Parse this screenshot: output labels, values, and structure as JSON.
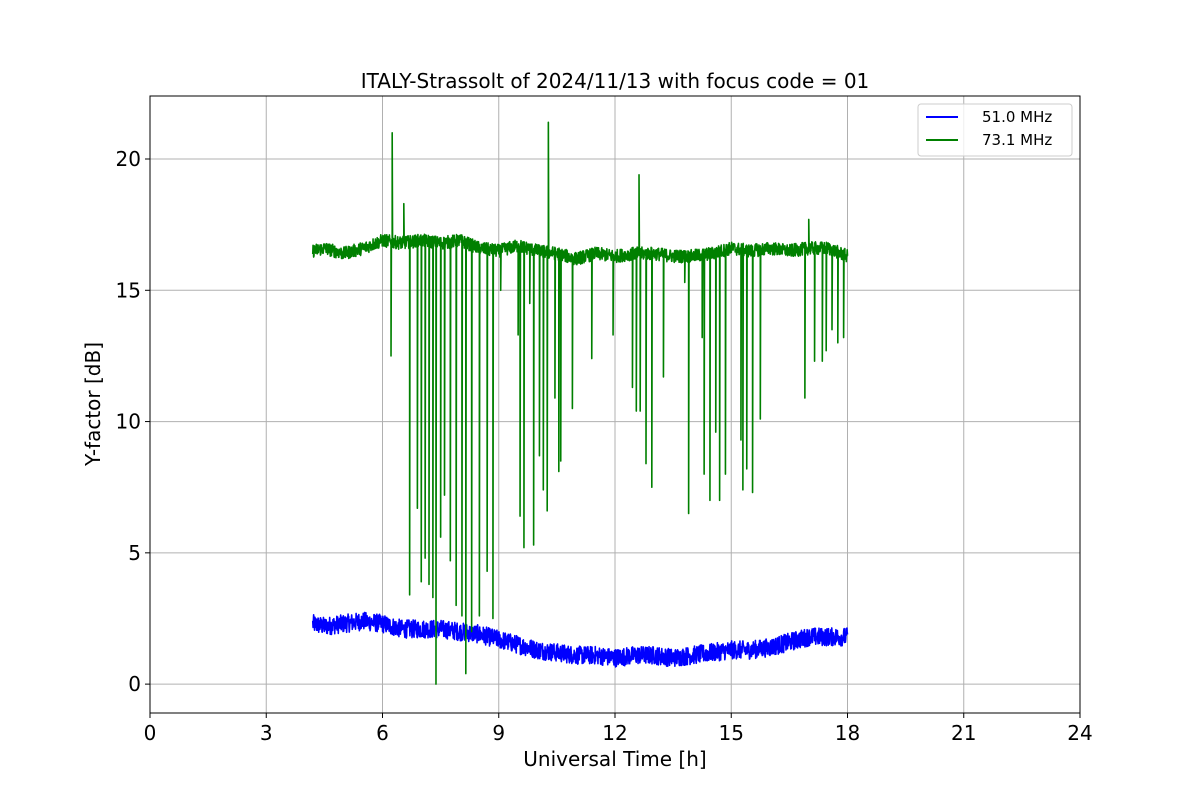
{
  "chart_data": {
    "type": "line",
    "title": "ITALY-Strassolt of 2024/11/13 with focus code = 01",
    "xlabel": "Universal Time [h]",
    "ylabel": "Y-factor [dB]",
    "xlim": [
      0,
      24
    ],
    "ylim": [
      -1.1,
      22.4
    ],
    "x_ticks": [
      0,
      3,
      6,
      9,
      12,
      15,
      18,
      21,
      24
    ],
    "y_ticks": [
      0,
      5,
      10,
      15,
      20
    ],
    "grid": true,
    "legend_position": "top-right",
    "series": [
      {
        "name": "51.0 MHz",
        "color": "#0000ff",
        "x": [
          4.2,
          4.5,
          5.0,
          5.5,
          6.0,
          6.5,
          7.0,
          7.5,
          8.0,
          8.5,
          9.0,
          9.5,
          10.0,
          10.5,
          11.0,
          11.5,
          12.0,
          12.5,
          13.0,
          13.5,
          14.0,
          14.5,
          15.0,
          15.5,
          16.0,
          16.5,
          17.0,
          17.5,
          18.0
        ],
        "y": [
          2.3,
          2.2,
          2.3,
          2.4,
          2.3,
          2.1,
          2.1,
          2.1,
          2.0,
          1.9,
          1.7,
          1.5,
          1.3,
          1.2,
          1.1,
          1.1,
          1.0,
          1.1,
          1.1,
          1.0,
          1.1,
          1.2,
          1.3,
          1.3,
          1.4,
          1.6,
          1.8,
          1.8,
          1.8
        ],
        "spread": 0.35
      },
      {
        "name": "73.1 MHz",
        "color": "#008000",
        "x": [
          4.2,
          4.5,
          5.0,
          5.5,
          6.0,
          6.5,
          7.0,
          7.5,
          8.0,
          8.5,
          9.0,
          9.5,
          10.0,
          10.5,
          11.0,
          11.5,
          12.0,
          12.5,
          13.0,
          13.5,
          14.0,
          14.5,
          15.0,
          15.5,
          16.0,
          16.5,
          17.0,
          17.5,
          18.0
        ],
        "y": [
          16.5,
          16.6,
          16.4,
          16.6,
          16.9,
          16.8,
          16.9,
          16.8,
          16.9,
          16.6,
          16.5,
          16.7,
          16.5,
          16.4,
          16.2,
          16.4,
          16.3,
          16.4,
          16.4,
          16.3,
          16.3,
          16.4,
          16.6,
          16.5,
          16.6,
          16.5,
          16.6,
          16.6,
          16.3
        ],
        "spread": 0.25,
        "spikes": [
          {
            "x": 6.25,
            "y": 21.0
          },
          {
            "x": 6.22,
            "y": 12.5
          },
          {
            "x": 6.55,
            "y": 18.3
          },
          {
            "x": 6.7,
            "y": 3.4
          },
          {
            "x": 6.9,
            "y": 6.7
          },
          {
            "x": 7.0,
            "y": 3.9
          },
          {
            "x": 7.1,
            "y": 4.8
          },
          {
            "x": 7.2,
            "y": 3.8
          },
          {
            "x": 7.3,
            "y": 3.3
          },
          {
            "x": 7.38,
            "y": 0.0
          },
          {
            "x": 7.5,
            "y": 5.6
          },
          {
            "x": 7.6,
            "y": 7.2
          },
          {
            "x": 7.75,
            "y": 4.7
          },
          {
            "x": 7.9,
            "y": 3.0
          },
          {
            "x": 8.05,
            "y": 2.6
          },
          {
            "x": 8.15,
            "y": 0.4
          },
          {
            "x": 8.3,
            "y": 2.0
          },
          {
            "x": 8.5,
            "y": 2.6
          },
          {
            "x": 8.7,
            "y": 4.3
          },
          {
            "x": 8.85,
            "y": 2.5
          },
          {
            "x": 9.05,
            "y": 15.0
          },
          {
            "x": 9.5,
            "y": 13.3
          },
          {
            "x": 9.55,
            "y": 6.4
          },
          {
            "x": 9.65,
            "y": 5.2
          },
          {
            "x": 9.8,
            "y": 14.5
          },
          {
            "x": 9.9,
            "y": 5.3
          },
          {
            "x": 10.05,
            "y": 8.7
          },
          {
            "x": 10.15,
            "y": 7.4
          },
          {
            "x": 10.25,
            "y": 6.6
          },
          {
            "x": 10.28,
            "y": 21.4
          },
          {
            "x": 10.45,
            "y": 10.9
          },
          {
            "x": 10.55,
            "y": 8.1
          },
          {
            "x": 10.6,
            "y": 8.5
          },
          {
            "x": 10.9,
            "y": 10.5
          },
          {
            "x": 11.4,
            "y": 12.4
          },
          {
            "x": 11.95,
            "y": 13.3
          },
          {
            "x": 12.45,
            "y": 11.3
          },
          {
            "x": 12.55,
            "y": 10.4
          },
          {
            "x": 12.65,
            "y": 10.4
          },
          {
            "x": 12.62,
            "y": 19.4
          },
          {
            "x": 12.8,
            "y": 8.4
          },
          {
            "x": 12.95,
            "y": 7.5
          },
          {
            "x": 13.25,
            "y": 11.7
          },
          {
            "x": 13.8,
            "y": 15.3
          },
          {
            "x": 13.9,
            "y": 6.5
          },
          {
            "x": 14.25,
            "y": 13.2
          },
          {
            "x": 14.3,
            "y": 8.0
          },
          {
            "x": 14.45,
            "y": 7.0
          },
          {
            "x": 14.6,
            "y": 9.6
          },
          {
            "x": 14.7,
            "y": 7.0
          },
          {
            "x": 14.85,
            "y": 8.0
          },
          {
            "x": 15.25,
            "y": 9.3
          },
          {
            "x": 15.3,
            "y": 7.4
          },
          {
            "x": 15.4,
            "y": 8.2
          },
          {
            "x": 15.55,
            "y": 7.3
          },
          {
            "x": 15.75,
            "y": 10.1
          },
          {
            "x": 16.9,
            "y": 10.9
          },
          {
            "x": 17.0,
            "y": 17.7
          },
          {
            "x": 17.15,
            "y": 12.3
          },
          {
            "x": 17.35,
            "y": 12.3
          },
          {
            "x": 17.45,
            "y": 12.7
          },
          {
            "x": 17.6,
            "y": 13.5
          },
          {
            "x": 17.75,
            "y": 13.0
          },
          {
            "x": 17.9,
            "y": 13.2
          }
        ]
      }
    ]
  }
}
